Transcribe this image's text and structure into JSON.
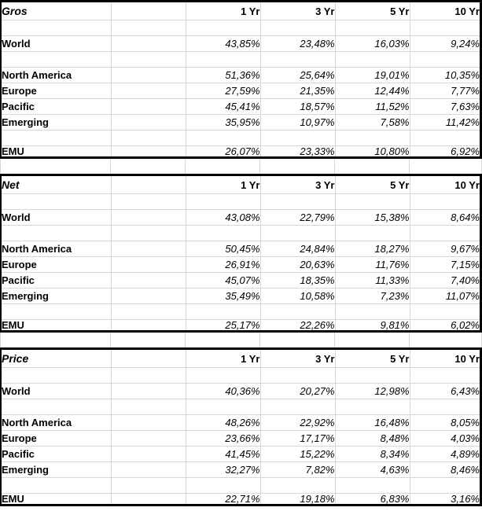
{
  "colors": {
    "background": "#ffffff",
    "grid_line": "#d8d8d8",
    "section_border": "#000000",
    "text": "#000000"
  },
  "columns": [
    "1 Yr",
    "3 Yr",
    "5 Yr",
    "10 Yr"
  ],
  "sections": [
    {
      "title": "Gros",
      "rows": [
        {
          "type": "blank"
        },
        {
          "type": "data",
          "label": "World",
          "values": [
            "43,85%",
            "23,48%",
            "16,03%",
            "9,24%"
          ]
        },
        {
          "type": "blank"
        },
        {
          "type": "data",
          "label": "North America",
          "values": [
            "51,36%",
            "25,64%",
            "19,01%",
            "10,35%"
          ]
        },
        {
          "type": "data",
          "label": "Europe",
          "values": [
            "27,59%",
            "21,35%",
            "12,44%",
            "7,77%"
          ]
        },
        {
          "type": "data",
          "label": "Pacific",
          "values": [
            "45,41%",
            "18,57%",
            "11,52%",
            "7,63%"
          ]
        },
        {
          "type": "data",
          "label": "Emerging",
          "values": [
            "35,95%",
            "10,97%",
            "7,58%",
            "11,42%"
          ]
        },
        {
          "type": "blank"
        },
        {
          "type": "data",
          "label": "EMU",
          "values": [
            "26,07%",
            "23,33%",
            "10,80%",
            "6,92%"
          ]
        }
      ]
    },
    {
      "title": "Net",
      "rows": [
        {
          "type": "blank"
        },
        {
          "type": "data",
          "label": "World",
          "values": [
            "43,08%",
            "22,79%",
            "15,38%",
            "8,64%"
          ]
        },
        {
          "type": "blank"
        },
        {
          "type": "data",
          "label": "North America",
          "values": [
            "50,45%",
            "24,84%",
            "18,27%",
            "9,67%"
          ]
        },
        {
          "type": "data",
          "label": "Europe",
          "values": [
            "26,91%",
            "20,63%",
            "11,76%",
            "7,15%"
          ]
        },
        {
          "type": "data",
          "label": "Pacific",
          "values": [
            "45,07%",
            "18,35%",
            "11,33%",
            "7,40%"
          ]
        },
        {
          "type": "data",
          "label": "Emerging",
          "values": [
            "35,49%",
            "10,58%",
            "7,23%",
            "11,07%"
          ]
        },
        {
          "type": "blank"
        },
        {
          "type": "data",
          "label": "EMU",
          "values": [
            "25,17%",
            "22,26%",
            "9,81%",
            "6,02%"
          ]
        }
      ]
    },
    {
      "title": "Price",
      "rows": [
        {
          "type": "blank"
        },
        {
          "type": "data",
          "label": "World",
          "values": [
            "40,36%",
            "20,27%",
            "12,98%",
            "6,43%"
          ]
        },
        {
          "type": "blank"
        },
        {
          "type": "data",
          "label": "North America",
          "values": [
            "48,26%",
            "22,92%",
            "16,48%",
            "8,05%"
          ]
        },
        {
          "type": "data",
          "label": "Europe",
          "values": [
            "23,66%",
            "17,17%",
            "8,48%",
            "4,03%"
          ]
        },
        {
          "type": "data",
          "label": "Pacific",
          "values": [
            "41,45%",
            "15,22%",
            "8,34%",
            "4,89%"
          ]
        },
        {
          "type": "data",
          "label": "Emerging",
          "values": [
            "32,27%",
            "7,82%",
            "4,63%",
            "8,46%"
          ]
        },
        {
          "type": "blank"
        },
        {
          "type": "data",
          "label": "EMU",
          "values": [
            "22,71%",
            "19,18%",
            "6,83%",
            "3,16%"
          ]
        }
      ]
    }
  ]
}
